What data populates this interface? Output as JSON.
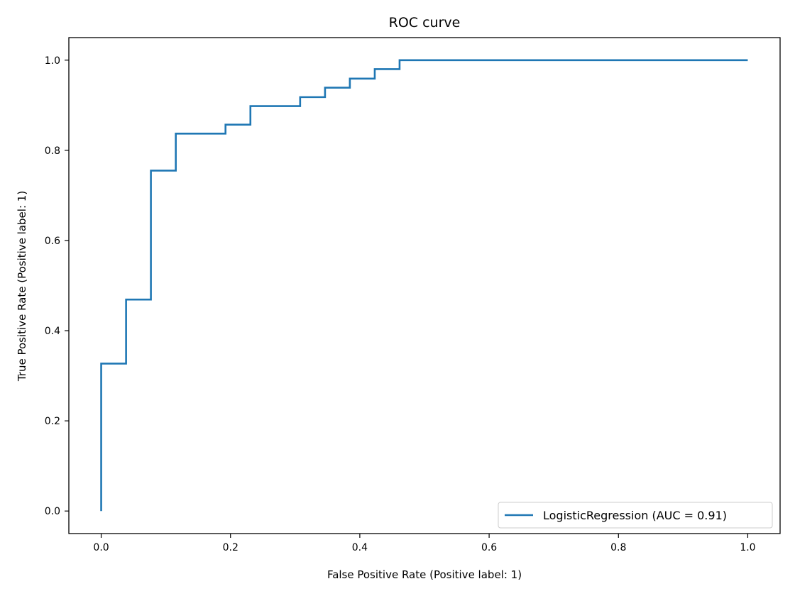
{
  "chart_data": {
    "type": "line",
    "title": "ROC curve",
    "xlabel": "False Positive Rate (Positive label: 1)",
    "ylabel": "True Positive Rate (Positive label: 1)",
    "xlim": [
      -0.05,
      1.05
    ],
    "ylim": [
      -0.05,
      1.05
    ],
    "xticks": [
      0.0,
      0.2,
      0.4,
      0.6,
      0.8,
      1.0
    ],
    "yticks": [
      0.0,
      0.2,
      0.4,
      0.6,
      0.8,
      1.0
    ],
    "xtick_labels": [
      "0.0",
      "0.2",
      "0.4",
      "0.6",
      "0.8",
      "1.0"
    ],
    "ytick_labels": [
      "0.0",
      "0.2",
      "0.4",
      "0.6",
      "0.8",
      "1.0"
    ],
    "grid": false,
    "legend_position": "lower-right",
    "series": [
      {
        "name": "LogisticRegression (AUC = 0.91)",
        "color": "#1f77b4",
        "x": [
          0.0,
          0.0,
          0.0385,
          0.0385,
          0.0769,
          0.0769,
          0.1154,
          0.1154,
          0.1923,
          0.1923,
          0.2308,
          0.2308,
          0.3077,
          0.3077,
          0.3462,
          0.3462,
          0.3846,
          0.3846,
          0.4231,
          0.4231,
          0.4615,
          0.4615,
          1.0
        ],
        "y": [
          0.0,
          0.327,
          0.327,
          0.469,
          0.469,
          0.755,
          0.755,
          0.837,
          0.837,
          0.857,
          0.857,
          0.898,
          0.898,
          0.918,
          0.918,
          0.939,
          0.939,
          0.959,
          0.959,
          0.98,
          0.98,
          1.0,
          1.0
        ]
      }
    ]
  }
}
